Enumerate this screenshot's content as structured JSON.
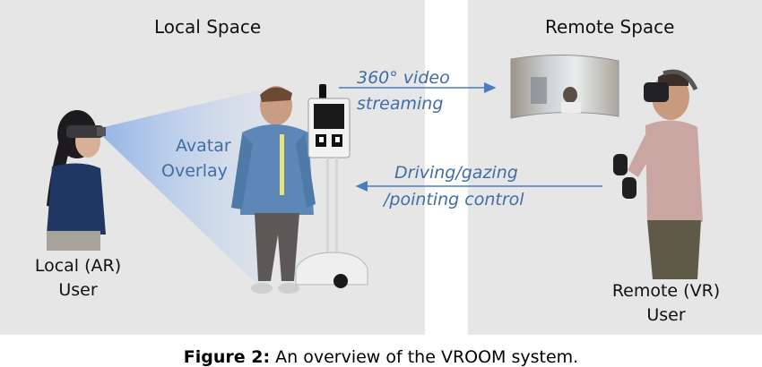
{
  "local_space": {
    "title": "Local Space",
    "avatar_label_line1": "Avatar",
    "avatar_label_line2": "Overlay",
    "user_label_line1": "Local (AR)",
    "user_label_line2": "User"
  },
  "remote_space": {
    "title": "Remote Space",
    "user_label_line1": "Remote (VR)",
    "user_label_line2": "User"
  },
  "arrows": {
    "video_line1": "360° video",
    "video_line2": "streaming",
    "control_line1": "Driving/gazing",
    "control_line2": "/pointing control"
  },
  "caption": {
    "prefix": "Figure 2:",
    "text": " An overview of the VROOM system."
  },
  "colors": {
    "panel_bg": "#e6e6e6",
    "accent_blue": "#3f6ea6",
    "arrow_blue": "#4a7cc0"
  }
}
